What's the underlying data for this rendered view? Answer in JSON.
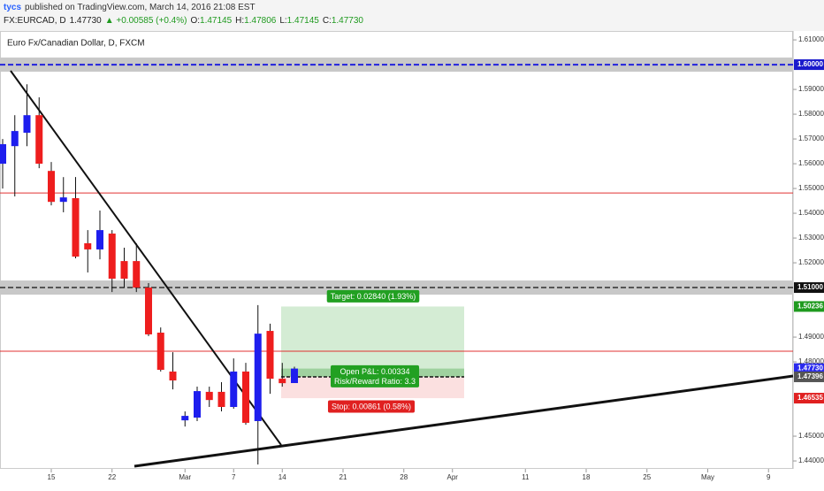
{
  "header": {
    "author": "tycs",
    "published": "published on TradingView.com, March 14, 2016 21:08 EST",
    "symbol": "FX:EURCAD, D",
    "last": "1.47730",
    "change": "▲ +0.00585 (+0.4%)",
    "ohlc": [
      {
        "label": "O:",
        "value": "1.47145"
      },
      {
        "label": "H:",
        "value": "1.47806"
      },
      {
        "label": "L:",
        "value": "1.47145"
      },
      {
        "label": "C:",
        "value": "1.47730"
      }
    ]
  },
  "chart_data": {
    "type": "candlestick",
    "title": "Euro Fx/Canadian Dollar, D, FXCM",
    "categories": [
      null,
      null,
      null,
      null,
      "15",
      null,
      null,
      null,
      null,
      "22",
      null,
      null,
      null,
      null,
      null,
      "Mar",
      null,
      null,
      null,
      "7",
      null,
      null,
      null,
      "14",
      null,
      null,
      null,
      null,
      "21",
      null,
      null,
      null,
      null,
      "28",
      null,
      null,
      null,
      "Apr",
      null,
      null,
      null,
      null,
      null,
      "11",
      null,
      null,
      null,
      null,
      "18",
      null,
      null,
      null,
      null,
      "25",
      null,
      null,
      null,
      null,
      "May",
      null,
      null,
      null,
      null,
      "9",
      null
    ],
    "open": [
      1.56,
      1.5671,
      1.5725,
      1.5796,
      1.5571,
      1.5446,
      1.5461,
      1.5279,
      1.5254,
      1.5318,
      1.5207,
      1.5207,
      1.51,
      1.4918,
      1.4761,
      1.4564,
      1.4575,
      1.4679,
      1.4679,
      1.4618,
      1.4761,
      1.4561,
      1.4925,
      1.4732,
      1.47145,
      null,
      null,
      null,
      null,
      null,
      null,
      null,
      null,
      null,
      null,
      null,
      null,
      null,
      null,
      null,
      null,
      null,
      null,
      null,
      null,
      null,
      null,
      null,
      null,
      null,
      null,
      null,
      null,
      null,
      null,
      null,
      null,
      null,
      null,
      null,
      null,
      null,
      null,
      null,
      null
    ],
    "high": [
      1.57,
      1.5796,
      1.5921,
      1.5868,
      1.5607,
      1.5546,
      1.5546,
      1.5332,
      1.5411,
      1.5332,
      1.5261,
      1.5279,
      1.5118,
      1.4939,
      1.4839,
      1.46,
      1.47,
      1.47,
      1.4718,
      1.4814,
      1.4796,
      1.5029,
      1.4954,
      1.4796,
      1.47806,
      null,
      null,
      null,
      null,
      null,
      null,
      null,
      null,
      null,
      null,
      null,
      null,
      null,
      null,
      null,
      null,
      null,
      null,
      null,
      null,
      null,
      null,
      null,
      null,
      null,
      null,
      null,
      null,
      null,
      null,
      null,
      null,
      null,
      null,
      null,
      null,
      null,
      null,
      null,
      null
    ],
    "low": [
      1.55,
      1.5468,
      1.5671,
      1.5582,
      1.5432,
      1.5404,
      1.5218,
      1.5161,
      1.5214,
      1.5082,
      1.51,
      1.5082,
      1.4904,
      1.4761,
      1.4689,
      1.4539,
      1.4561,
      1.4618,
      1.46,
      1.4611,
      1.4546,
      1.4386,
      1.4671,
      1.47,
      1.47145,
      null,
      null,
      null,
      null,
      null,
      null,
      null,
      null,
      null,
      null,
      null,
      null,
      null,
      null,
      null,
      null,
      null,
      null,
      null,
      null,
      null,
      null,
      null,
      null,
      null,
      null,
      null,
      null,
      null,
      null,
      null,
      null,
      null,
      null,
      null,
      null,
      null,
      null,
      null,
      null
    ],
    "close": [
      1.5679,
      1.5732,
      1.5796,
      1.56,
      1.5446,
      1.5464,
      1.5225,
      1.5254,
      1.5332,
      1.5136,
      1.5136,
      1.51,
      1.4911,
      1.4768,
      1.4725,
      1.4582,
      1.4682,
      1.4646,
      1.4618,
      1.4761,
      1.4554,
      1.4914,
      1.4732,
      1.4714,
      1.4773,
      null,
      null,
      null,
      null,
      null,
      null,
      null,
      null,
      null,
      null,
      null,
      null,
      null,
      null,
      null,
      null,
      null,
      null,
      null,
      null,
      null,
      null,
      null,
      null,
      null,
      null,
      null,
      null,
      null,
      null,
      null,
      null,
      null,
      null,
      null,
      null,
      null,
      null,
      null,
      null
    ],
    "up_color": "#1e1eee",
    "down_color": "#ee1e1e",
    "ylim": [
      1.4368,
      1.6136
    ],
    "yticks": [
      {
        "value": 1.44,
        "label": "1.44000"
      },
      {
        "value": 1.45,
        "label": "1.45000"
      },
      {
        "value": 1.48,
        "label": "1.48000"
      },
      {
        "value": 1.49,
        "label": "1.49000"
      },
      {
        "value": 1.52,
        "label": "1.52000"
      },
      {
        "value": 1.53,
        "label": "1.53000"
      },
      {
        "value": 1.54,
        "label": "1.54000"
      },
      {
        "value": 1.55,
        "label": "1.55000"
      },
      {
        "value": 1.56,
        "label": "1.56000"
      },
      {
        "value": 1.57,
        "label": "1.57000"
      },
      {
        "value": 1.58,
        "label": "1.58000"
      },
      {
        "value": 1.59,
        "label": "1.59000"
      },
      {
        "value": 1.61,
        "label": "1.61000"
      }
    ],
    "grid": false,
    "levels": [
      {
        "value": 1.6,
        "color": "#2222dd",
        "style": "dashed"
      },
      {
        "value": 1.51,
        "color": "#555555",
        "style": "dashed"
      },
      {
        "value": 1.5482,
        "color": "#e03030",
        "style": "solid"
      },
      {
        "value": 1.4843,
        "color": "#e03030",
        "style": "solid"
      }
    ],
    "price_labels": [
      {
        "value": 1.6,
        "label": "1.60000",
        "color": "#1a1acc"
      },
      {
        "value": 1.51,
        "label": "1.51000",
        "color": "#111111"
      },
      {
        "value": 1.50236,
        "label": "1.50236",
        "color": "#1f9a1f"
      },
      {
        "value": 1.4773,
        "label": "1.47730",
        "color": "#2a2aee"
      },
      {
        "value": 1.47396,
        "label": "1.47396",
        "color": "#555555"
      },
      {
        "value": 1.46535,
        "label": "1.46535",
        "color": "#e02020"
      }
    ],
    "position": {
      "entry": 1.47396,
      "target": 1.50236,
      "stop": 1.46535,
      "target_text": "Target: 0.02840 (1.93%)",
      "pnl_text": "Open P&L: 0.00334",
      "ratio_text": "Risk/Reward Ratio: 3.3",
      "stop_text": "Stop: 0.00861 (0.58%)"
    }
  }
}
